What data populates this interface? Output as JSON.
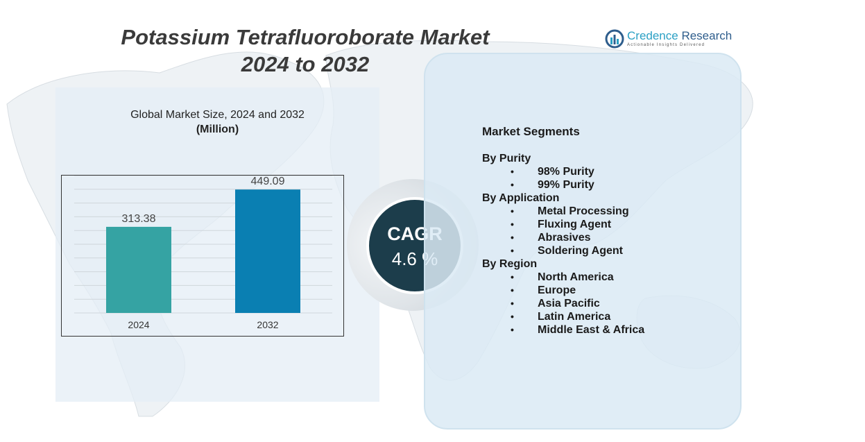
{
  "title": {
    "line1": "Potassium Tetrafluoroborate Market",
    "line2": "2024 to 2032"
  },
  "logo": {
    "name_part1": "Credence",
    "name_part2": " Research",
    "tagline": "Actionable Insights Delivered",
    "icon": "credence-logo-icon"
  },
  "chart_heading": "Global Market Size,  2024 and 2032",
  "chart_unit": "(Million)",
  "chart_data": {
    "type": "bar",
    "categories": [
      "2024",
      "2032"
    ],
    "values": [
      313.38,
      449.09
    ],
    "data_labels": [
      "313.38",
      "449.09"
    ],
    "colors": [
      "#35a3a3",
      "#0a7fb2"
    ],
    "ylim": [
      0,
      500
    ],
    "grid": true
  },
  "cagr": {
    "label": "CAGR",
    "value": "4.6 %"
  },
  "segments": {
    "title": "Market Segments",
    "groups": [
      {
        "title": "By Purity",
        "items": [
          "98% Purity",
          "99% Purity"
        ]
      },
      {
        "title": "By Application",
        "items": [
          "Metal Processing",
          "Fluxing Agent",
          "Abrasives",
          "Soldering Agent"
        ]
      },
      {
        "title": "By Region",
        "items": [
          "North America",
          "Europe",
          "Asia Pacific",
          "Latin America",
          "Middle East & Africa"
        ]
      }
    ],
    "bullet": "•"
  },
  "colors": {
    "cagr_circle": "#1c3d4b",
    "panel": "#dceaf4",
    "title_text": "#3a3a3a"
  }
}
